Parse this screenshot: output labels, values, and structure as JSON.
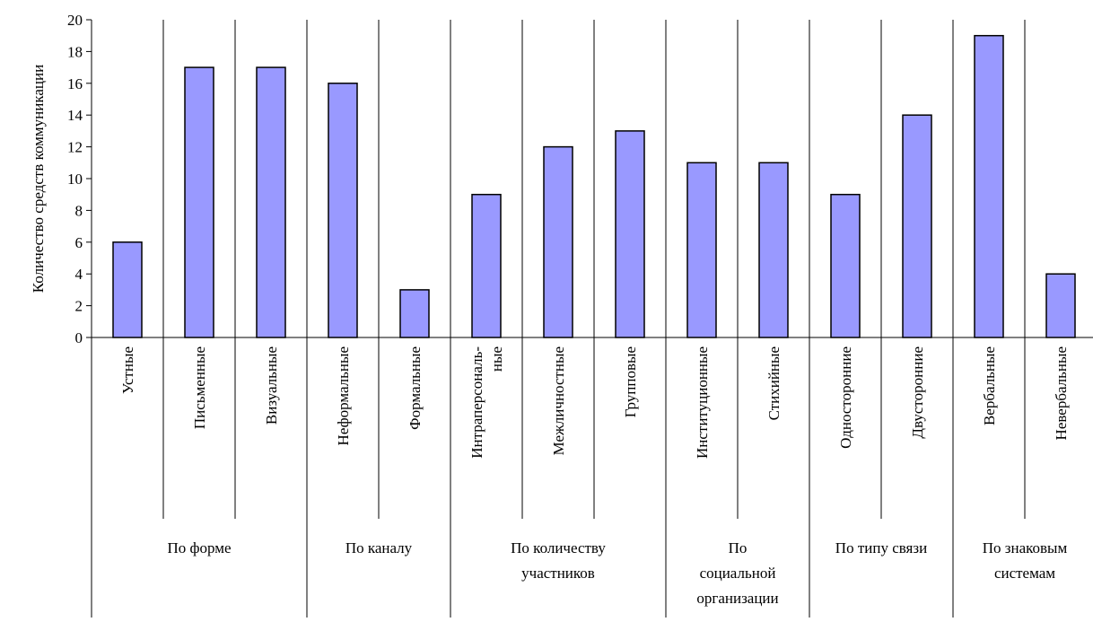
{
  "chart_data": {
    "type": "bar",
    "ylabel": "Количество средств коммуникации",
    "ylim": [
      0,
      20
    ],
    "yticks": [
      "0",
      "2",
      "4",
      "6",
      "8",
      "10",
      "12",
      "14",
      "16",
      "18",
      "20"
    ],
    "grid": false,
    "categories": [
      [
        "Устные"
      ],
      [
        "Письменные"
      ],
      [
        "Визуальные"
      ],
      [
        "Неформальные"
      ],
      [
        "Формальные"
      ],
      [
        "Интраперсональ-",
        "ные"
      ],
      [
        "Межличностные"
      ],
      [
        "Групповые"
      ],
      [
        "Институционные"
      ],
      [
        "Стихийные"
      ],
      [
        "Односторонние"
      ],
      [
        "Двусторонние"
      ],
      [
        "Вербальные"
      ],
      [
        "Невербальные"
      ]
    ],
    "values": [
      6,
      17,
      17,
      16,
      3,
      9,
      12,
      13,
      11,
      11,
      9,
      14,
      19,
      4
    ],
    "groups": [
      {
        "label": [
          "По форме"
        ],
        "span": 3
      },
      {
        "label": [
          "По каналу"
        ],
        "span": 2
      },
      {
        "label": [
          "По количеству",
          "участников"
        ],
        "span": 3
      },
      {
        "label": [
          "По",
          "социальной",
          "организации"
        ],
        "span": 2
      },
      {
        "label": [
          "По типу связи"
        ],
        "span": 2
      },
      {
        "label": [
          "По знаковым",
          "системам"
        ],
        "span": 2
      }
    ],
    "colors": {
      "bar_fill": "#9999ff",
      "bar_stroke": "#000000",
      "axis": "#000000"
    }
  }
}
